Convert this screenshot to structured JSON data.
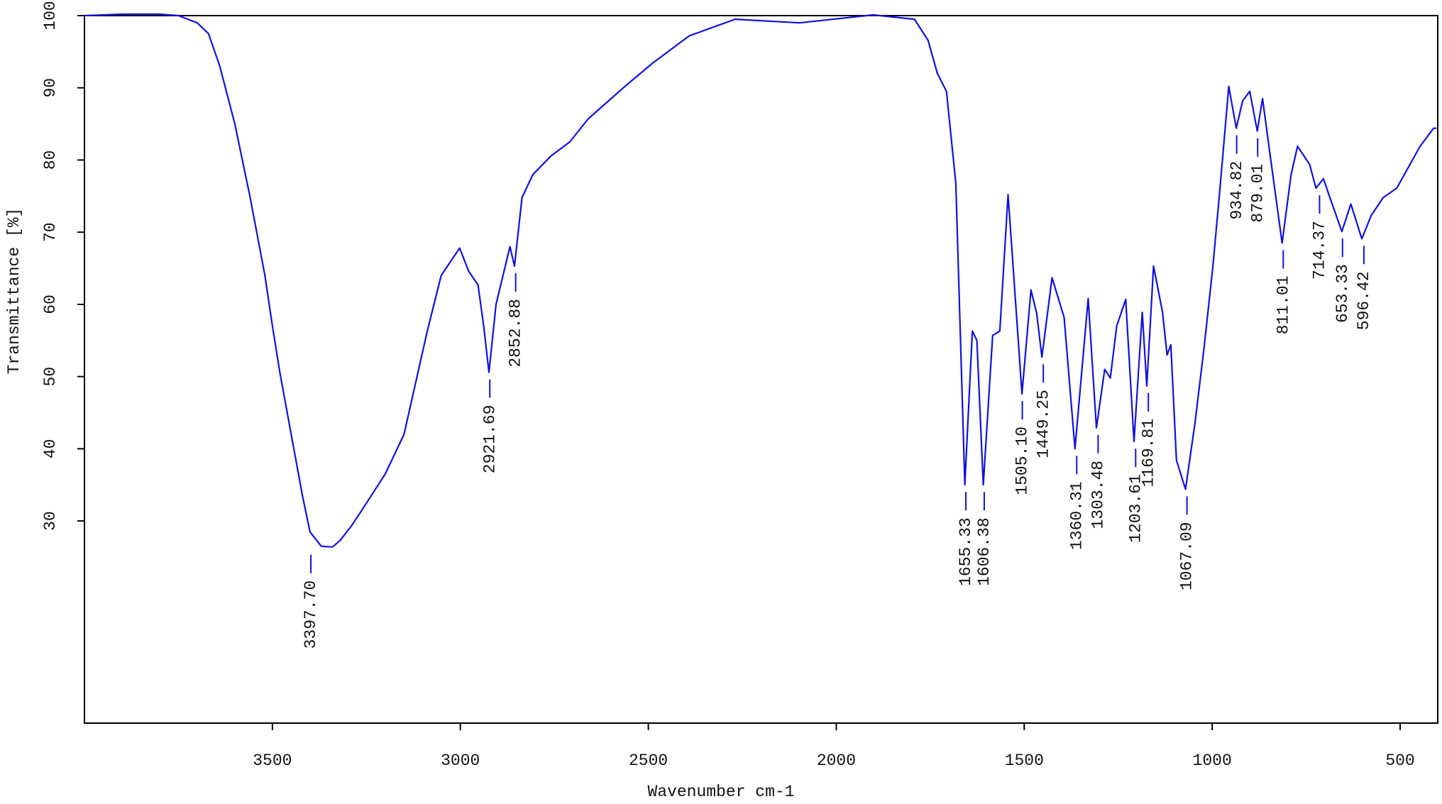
{
  "chart_data": {
    "type": "line",
    "xlabel": "Wavenumber cm-1",
    "ylabel": "Transmittance [%]",
    "xlim": [
      4000,
      400
    ],
    "ylim": [
      2,
      100
    ],
    "xticks": [
      3500,
      3000,
      2500,
      2000,
      1500,
      1000,
      500
    ],
    "yticks": [
      30,
      40,
      50,
      60,
      70,
      80,
      90,
      100
    ],
    "series": [
      {
        "color": "#1010e0",
        "x": [
          4000,
          3900,
          3800,
          3750,
          3700,
          3670,
          3640,
          3600,
          3560,
          3520,
          3500,
          3480,
          3450,
          3420,
          3400,
          3370,
          3340,
          3320,
          3290,
          3247,
          3200,
          3150,
          3088,
          3051,
          3002,
          2978,
          2953,
          2938,
          2924,
          2905,
          2868,
          2856,
          2836,
          2807,
          2758,
          2709,
          2660,
          2562,
          2489,
          2391,
          2269,
          2098,
          1902,
          1792,
          1756,
          1731,
          1707,
          1682,
          1658,
          1638,
          1626,
          1609,
          1584,
          1565,
          1543,
          1528,
          1506,
          1482,
          1467,
          1453,
          1426,
          1394,
          1365,
          1330,
          1308,
          1286,
          1271,
          1254,
          1230,
          1208,
          1186,
          1174,
          1156,
          1132,
          1120,
          1110,
          1095,
          1071,
          1046,
          1022,
          998,
          978,
          956,
          936,
          919,
          900,
          880,
          866,
          839,
          814,
          790,
          773,
          741,
          724,
          704,
          687,
          655,
          631,
          602,
          577,
          545,
          509,
          447,
          411,
          403
        ],
        "values": [
          100,
          100.2,
          100.2,
          100,
          99,
          97.5,
          93,
          85,
          75,
          64,
          57,
          50.5,
          42,
          33.5,
          28.5,
          26.5,
          26.4,
          27.3,
          29.3,
          32.7,
          36.5,
          42,
          56.3,
          64,
          67.8,
          64.6,
          62.7,
          57,
          50.6,
          60,
          68,
          65.3,
          74.8,
          78,
          80.6,
          82.5,
          85.7,
          90.2,
          93.4,
          97.2,
          99.5,
          99,
          100.1,
          99.5,
          96.6,
          92,
          89.5,
          76.8,
          35,
          56.3,
          55,
          35,
          55.7,
          56.3,
          75.2,
          64,
          47.6,
          62,
          58.8,
          52.7,
          63.7,
          58.2,
          40,
          60.8,
          42.9,
          51,
          49.8,
          57,
          60.7,
          41,
          58.9,
          48.7,
          65.3,
          58.9,
          53,
          54.4,
          38.4,
          34.4,
          43.5,
          53.8,
          65.3,
          76.8,
          90.2,
          84.4,
          88.2,
          89.5,
          84,
          88.5,
          78,
          68.5,
          78,
          81.9,
          79.4,
          76.1,
          77.4,
          74.8,
          70.1,
          73.9,
          69.1,
          72.3,
          74.8,
          76.1,
          81.9,
          84.4,
          84.4
        ]
      }
    ],
    "peak_labels": [
      {
        "value": 3397.7,
        "label": "3397.70",
        "y": 26.3
      },
      {
        "value": 2921.69,
        "label": "2921.69",
        "y": 50.6
      },
      {
        "value": 2852.88,
        "label": "2852.88",
        "y": 65.3
      },
      {
        "value": 1655.33,
        "label": "1655.33",
        "y": 35
      },
      {
        "value": 1606.38,
        "label": "1606.38",
        "y": 35
      },
      {
        "value": 1505.1,
        "label": "1505.10",
        "y": 47.6
      },
      {
        "value": 1449.25,
        "label": "1449.25",
        "y": 52.7
      },
      {
        "value": 1360.31,
        "label": "1360.31",
        "y": 40
      },
      {
        "value": 1303.48,
        "label": "1303.48",
        "y": 42.9
      },
      {
        "value": 1203.61,
        "label": "1203.61",
        "y": 41
      },
      {
        "value": 1169.81,
        "label": "1169.81",
        "y": 48.7
      },
      {
        "value": 1067.09,
        "label": "1067.09",
        "y": 34.4
      },
      {
        "value": 934.82,
        "label": "934.82",
        "y": 84.4
      },
      {
        "value": 879.01,
        "label": "879.01",
        "y": 84
      },
      {
        "value": 811.01,
        "label": "811.01",
        "y": 68.5
      },
      {
        "value": 714.37,
        "label": "714.37",
        "y": 76.1
      },
      {
        "value": 653.33,
        "label": "653.33",
        "y": 70.1
      },
      {
        "value": 596.42,
        "label": "596.42",
        "y": 69.1
      }
    ]
  }
}
